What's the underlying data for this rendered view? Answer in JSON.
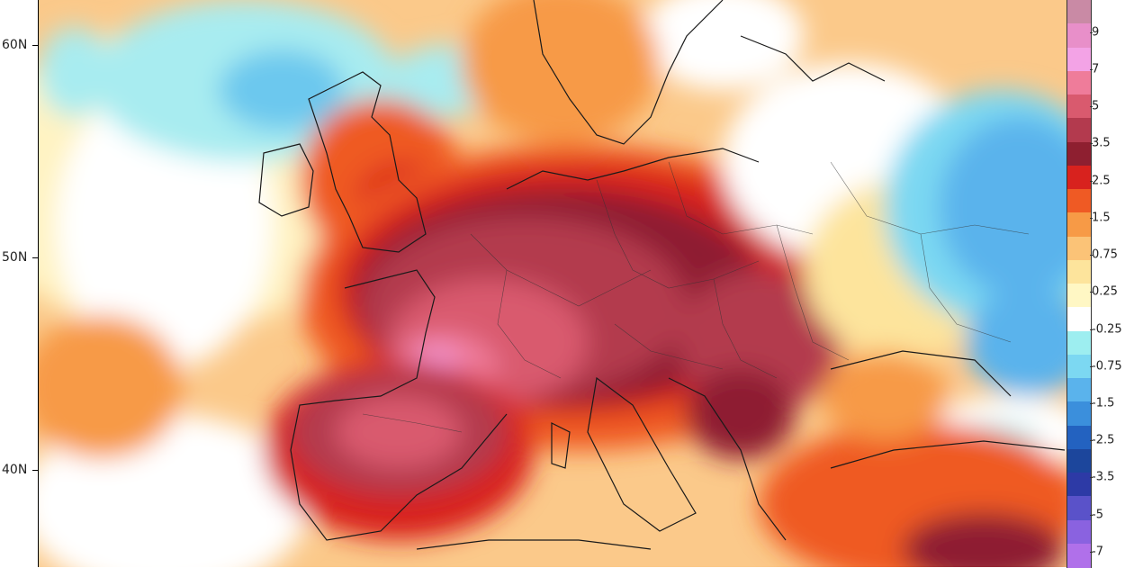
{
  "map": {
    "latitude_labels": [
      "60N",
      "50N",
      "40N"
    ],
    "anomaly_regions": [
      {
        "area": "Scandinavia west coast",
        "color": "#f0873e"
      },
      {
        "area": "Central Europe",
        "color": "#b03a52"
      },
      {
        "area": "Southern France / Spain",
        "color": "#d9607a"
      },
      {
        "area": "Eastern Europe / Russia",
        "color": "#4a9ee0"
      }
    ]
  },
  "legend": {
    "labels": [
      "9",
      "7",
      "5",
      "3.5",
      "2.5",
      "1.5",
      "0.75",
      "0.25",
      "-0.25",
      "-0.75",
      "-1.5",
      "-2.5",
      "-3.5",
      "-5",
      "-7"
    ],
    "colors": [
      "#c98aa5",
      "#e88fc9",
      "#f3a3e6",
      "#ef7c9a",
      "#d95a6e",
      "#b33a4e",
      "#8e1f30",
      "#d8221e",
      "#ef5a24",
      "#f79a46",
      "#fbc377",
      "#fde49c",
      "#fff7c4",
      "#ffffff",
      "#9deef0",
      "#7cd8f2",
      "#5ab3ec",
      "#3b8fdc",
      "#2362c0",
      "#1c469c",
      "#2d3aa6",
      "#5a52c9",
      "#8a62e0",
      "#b070ea"
    ]
  }
}
